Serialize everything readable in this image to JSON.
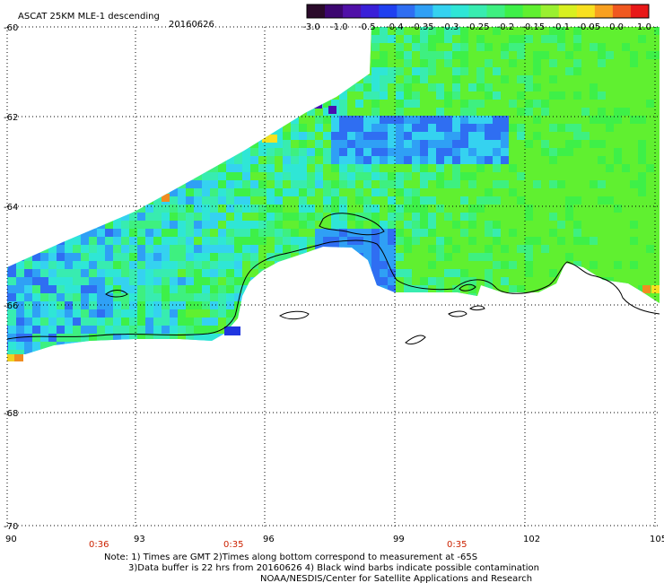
{
  "header": {
    "product": "ASCAT 25KM MLE-1 descending",
    "date": "20160626"
  },
  "colorbar": {
    "colors": [
      "#2a0a2a",
      "#3c0670",
      "#5010a8",
      "#3a20d8",
      "#2040f0",
      "#2f6ef2",
      "#2fa0f5",
      "#35d2f0",
      "#2fe6d6",
      "#38ecb0",
      "#3ef080",
      "#3ef048",
      "#60f030",
      "#9af030",
      "#d8f020",
      "#f8e020",
      "#f8a020",
      "#f05820",
      "#e81818"
    ],
    "tick_labels": [
      "-3.0",
      "-1.0",
      "-0.5",
      "-0.4",
      "-0.35",
      "-0.3",
      "-0.25",
      "-0.2",
      "-0.15",
      "-0.1",
      "-0.05",
      "0.0",
      "1.0"
    ]
  },
  "map": {
    "lon_ticks": [
      "90",
      "93",
      "96",
      "99",
      "102",
      "105"
    ],
    "lat_ticks": [
      "-60",
      "-62",
      "-64",
      "-66",
      "-68",
      "-70"
    ],
    "times": [
      "0:36",
      "0:35",
      "0:35"
    ]
  },
  "footer": {
    "line1": "Note: 1) Times are GMT 2)Times along bottom correspond to measurement at -65S",
    "line2": "3)Data buffer is 22 hrs from 20160626 4) Black wind barbs indicate possible contamination",
    "line3": "NOAA/NESDIS/Center for Satellite Applications and Research"
  }
}
